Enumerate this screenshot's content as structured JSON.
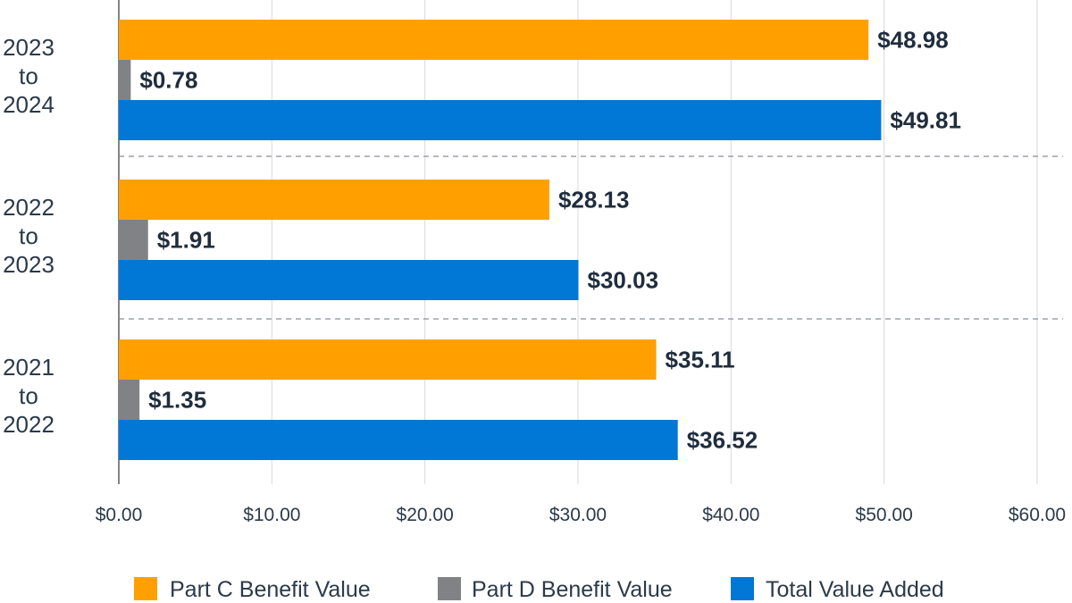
{
  "chart_data": {
    "type": "bar",
    "orientation": "horizontal",
    "categories": [
      "2023 to 2024",
      "2022 to 2023",
      "2021 to 2022"
    ],
    "category_lines": [
      [
        "2023",
        "to",
        "2024"
      ],
      [
        "2022",
        "to",
        "2023"
      ],
      [
        "2021",
        "to",
        "2022"
      ]
    ],
    "series": [
      {
        "name": "Part C Benefit Value",
        "color": "#FFA000",
        "values": [
          48.98,
          28.13,
          35.11
        ],
        "labels": [
          "$48.98",
          "$28.13",
          "$35.11"
        ]
      },
      {
        "name": "Part D Benefit Value",
        "color": "#808285",
        "values": [
          0.78,
          1.91,
          1.35
        ],
        "labels": [
          "$0.78",
          "$1.91",
          "$1.35"
        ]
      },
      {
        "name": "Total Value Added",
        "color": "#0177D6",
        "values": [
          49.81,
          30.03,
          36.52
        ],
        "labels": [
          "$49.81",
          "$30.03",
          "$36.52"
        ]
      }
    ],
    "xlim": [
      0,
      60
    ],
    "xticks": [
      0,
      10,
      20,
      30,
      40,
      50,
      60
    ],
    "xtick_labels": [
      "$0.00",
      "$10.00",
      "$20.00",
      "$30.00",
      "$40.00",
      "$50.00",
      "$60.00"
    ],
    "grid": true,
    "legend_position": "bottom"
  }
}
